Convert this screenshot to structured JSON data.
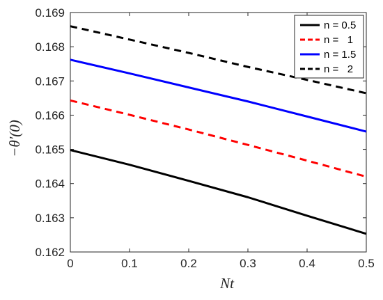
{
  "chart_data": {
    "type": "line",
    "xlabel": "Nt",
    "ylabel": "−θ′(0)",
    "xlim": [
      0,
      0.5
    ],
    "ylim": [
      0.162,
      0.169
    ],
    "xticks": [
      0,
      0.1,
      0.2,
      0.3,
      0.4,
      0.5
    ],
    "xtick_labels": [
      "0",
      "0.1",
      "0.2",
      "0.3",
      "0.4",
      "0.5"
    ],
    "yticks": [
      0.162,
      0.163,
      0.164,
      0.165,
      0.166,
      0.167,
      0.168,
      0.169
    ],
    "ytick_labels": [
      "0.162",
      "0.163",
      "0.164",
      "0.165",
      "0.166",
      "0.167",
      "0.168",
      "0.169"
    ],
    "grid": false,
    "legend_position": "top-right",
    "x": [
      0,
      0.1,
      0.2,
      0.3,
      0.4,
      0.5
    ],
    "series": [
      {
        "name": "n = 0.5",
        "color": "#000000",
        "dash": "solid",
        "values": [
          0.16498,
          0.16455,
          0.16408,
          0.1636,
          0.16306,
          0.16253
        ]
      },
      {
        "name": "n =   1",
        "color": "#ff0000",
        "dash": "dashed",
        "values": [
          0.16643,
          0.16601,
          0.16558,
          0.16513,
          0.16467,
          0.1642
        ]
      },
      {
        "name": "n = 1.5",
        "color": "#0000ff",
        "dash": "solid",
        "values": [
          0.16762,
          0.16722,
          0.16681,
          0.1664,
          0.16596,
          0.16552
        ]
      },
      {
        "name": "n =   2",
        "color": "#000000",
        "dash": "dashed",
        "values": [
          0.1686,
          0.16821,
          0.16782,
          0.16741,
          0.16703,
          0.16664
        ]
      }
    ]
  }
}
